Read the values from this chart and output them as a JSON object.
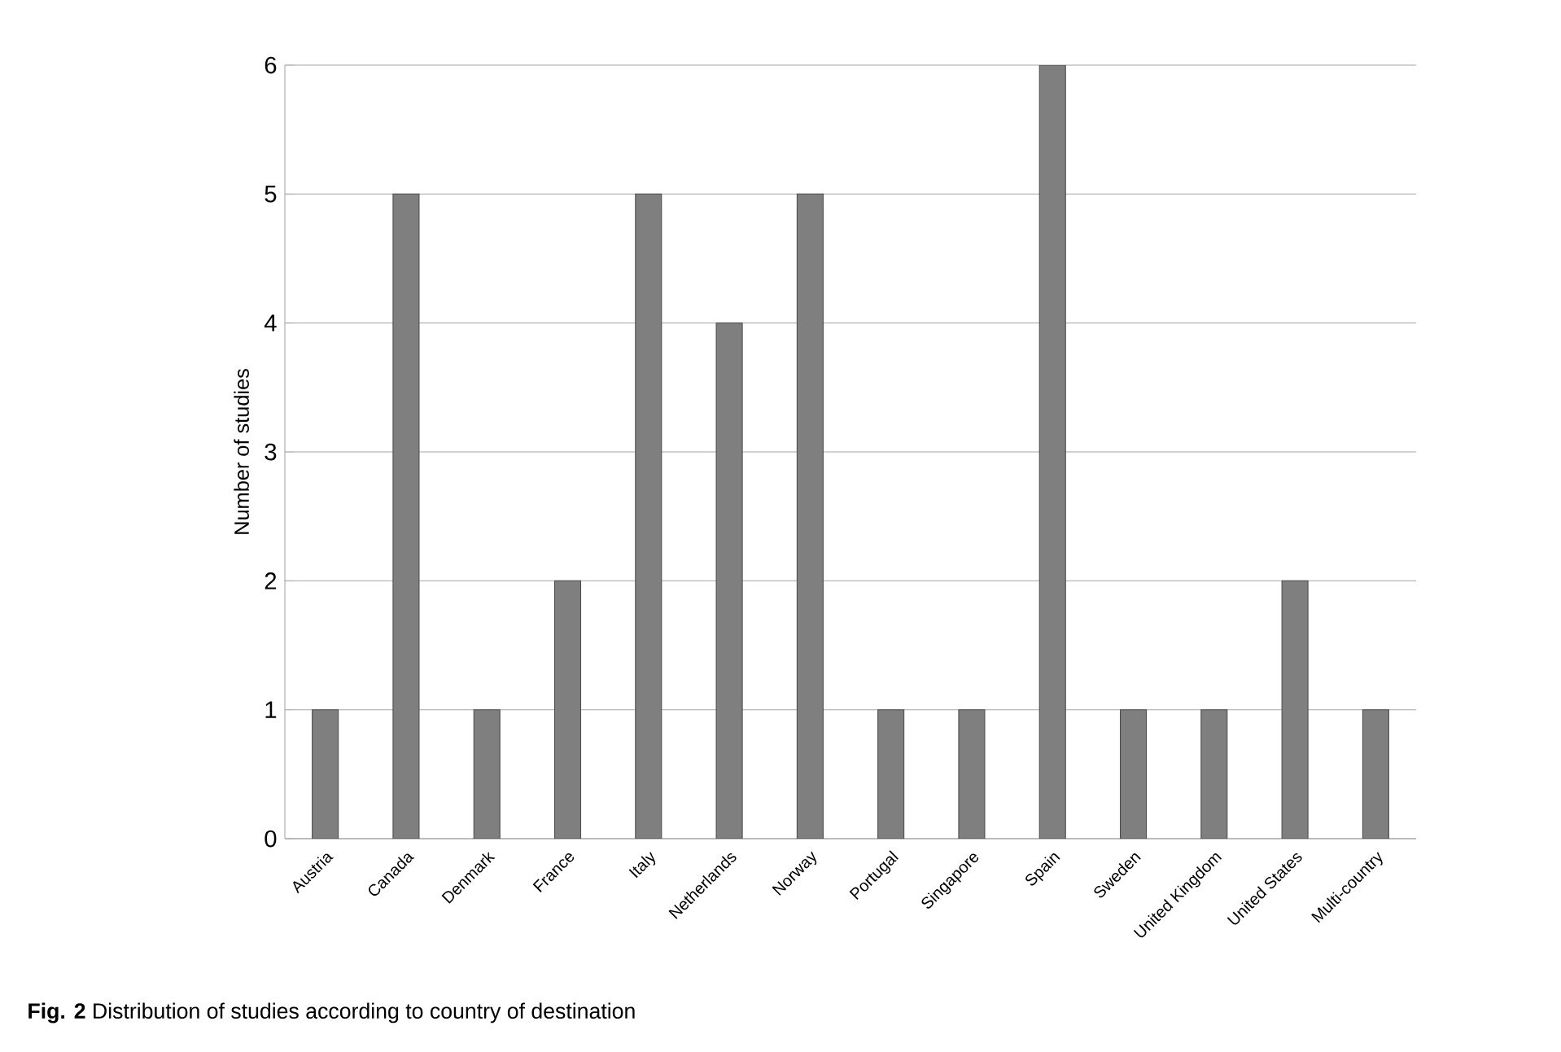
{
  "chart_data": {
    "type": "bar",
    "ylabel": "Number of studies",
    "categories": [
      "Austria",
      "Canada",
      "Denmark",
      "France",
      "Italy",
      "Netherlands",
      "Norway",
      "Portugal",
      "Singapore",
      "Spain",
      "Sweden",
      "United Kingdom",
      "United States",
      "Multi-country"
    ],
    "values": [
      1,
      5,
      1,
      2,
      5,
      4,
      5,
      1,
      1,
      6,
      1,
      1,
      2,
      1
    ],
    "color": "#7f7f7f",
    "ylim": [
      0,
      6
    ],
    "yticks": [
      0,
      1,
      2,
      3,
      4,
      5,
      6
    ],
    "grid": "y",
    "annotations": [
      "**Fig. 2** Distribution of studies according to country of destination"
    ]
  }
}
